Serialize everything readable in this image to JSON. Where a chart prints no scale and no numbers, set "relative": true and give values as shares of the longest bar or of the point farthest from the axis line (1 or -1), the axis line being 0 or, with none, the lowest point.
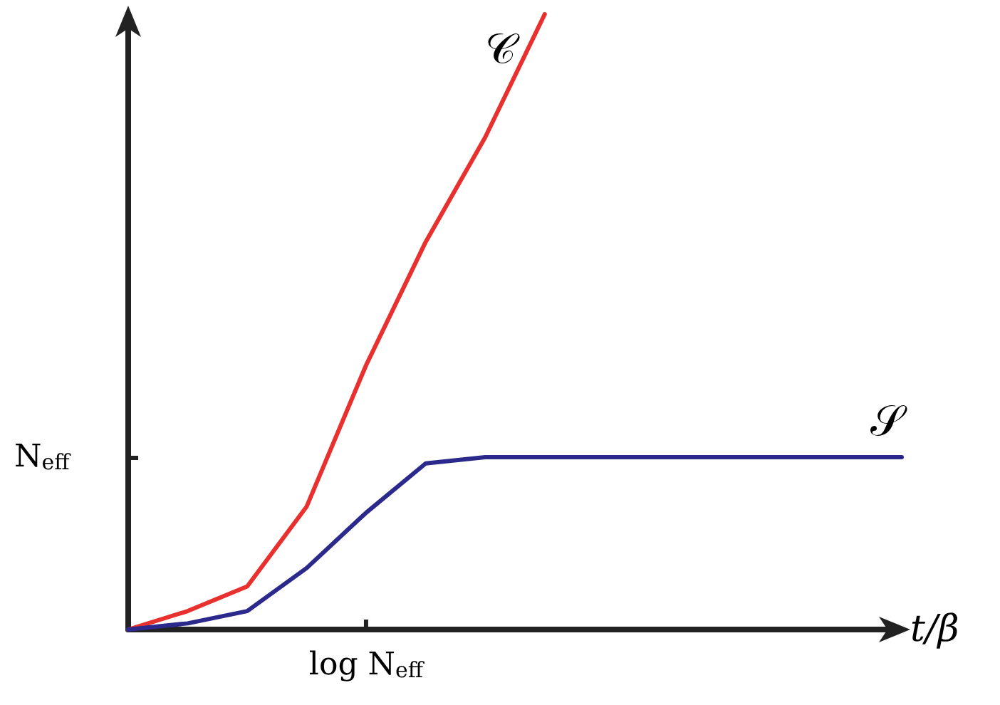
{
  "chart_data": {
    "type": "line",
    "xlabel": "t/β",
    "relative": true,
    "categories": [
      null,
      null,
      null,
      null,
      null,
      null,
      null,
      null,
      null,
      null,
      null,
      null,
      null,
      null
    ],
    "series": [
      {
        "name": "𝒞",
        "color": "#e8312f",
        "values": [
          0,
          0.03,
          0.07,
          0.2,
          0.43,
          0.63,
          0.8,
          1,
          null,
          null,
          null,
          null,
          null,
          null
        ]
      },
      {
        "name": "𝒮",
        "color": "#2b2a8c",
        "values": [
          0,
          0.01,
          0.03,
          0.1,
          0.19,
          0.27,
          0.28,
          0.28,
          0.28,
          0.28,
          0.28,
          0.28,
          0.28,
          0.28
        ]
      }
    ],
    "annotations": [
      "N$_{eff}$",
      "log N$_{eff}$"
    ],
    "grid": false,
    "legend": false,
    "marker": "none",
    "line_style": "solid"
  }
}
